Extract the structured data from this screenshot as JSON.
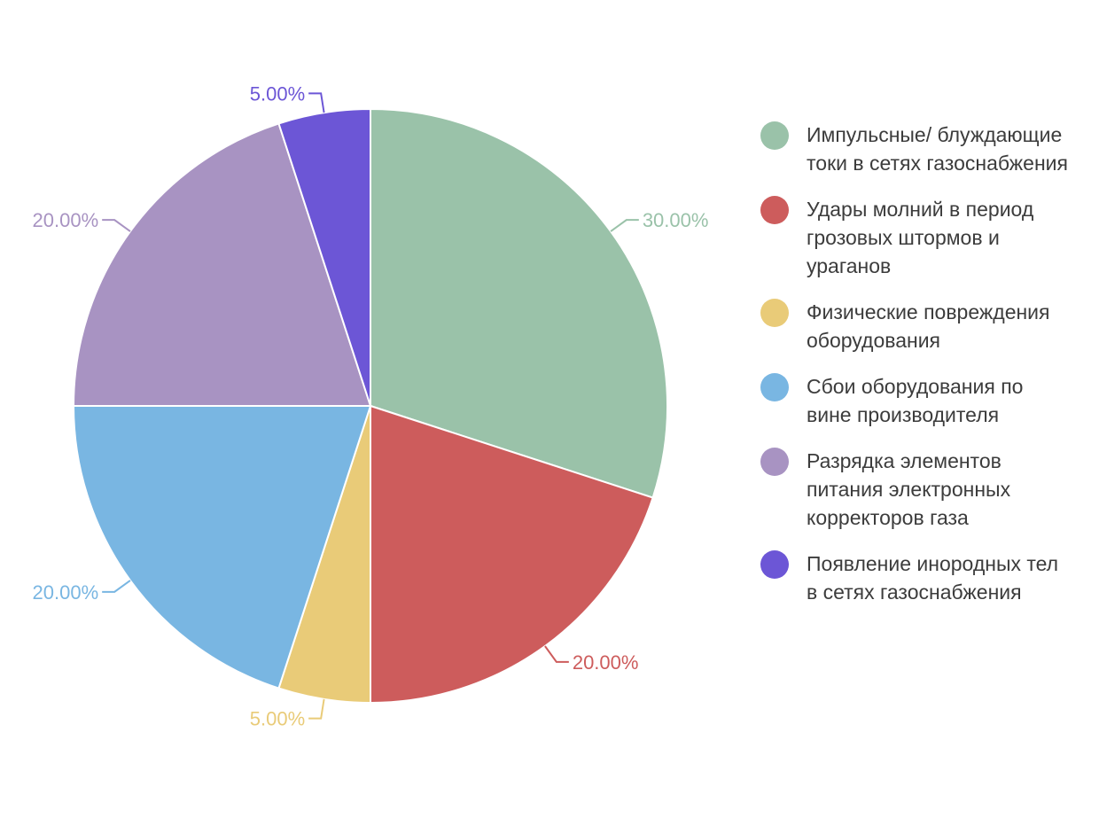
{
  "chart_data": {
    "type": "pie",
    "title": "",
    "legend_position": "right",
    "slices": [
      {
        "label": "Импульсные/ блуждающие токи в сетях газоснабжения",
        "value": 30.0,
        "value_label": "30.00%",
        "color": "#9ac2a9"
      },
      {
        "label": "Удары молний в период грозовых штормов и ураганов",
        "value": 20.0,
        "value_label": "20.00%",
        "color": "#cd5c5c"
      },
      {
        "label": "Физические повреждения оборудования",
        "value": 5.0,
        "value_label": "5.00%",
        "color": "#e9cb78"
      },
      {
        "label": "Сбои оборудования по вине производителя",
        "value": 20.0,
        "value_label": "20.00%",
        "color": "#79b6e2"
      },
      {
        "label": "Разрядка элементов питания электронных корректоров газа",
        "value": 20.0,
        "value_label": "20.00%",
        "color": "#a893c2"
      },
      {
        "label": "Появление инородных тел в сетях газоснабжения",
        "value": 5.0,
        "value_label": "5.00%",
        "color": "#6c56d6"
      }
    ]
  }
}
